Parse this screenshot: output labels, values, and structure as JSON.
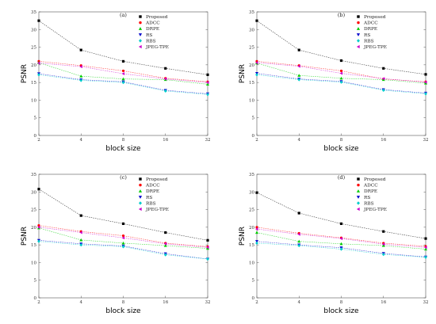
{
  "chart_data": [
    {
      "type": "line",
      "title": "(a)",
      "xlabel": "block size",
      "ylabel": "PSNR",
      "categories": [
        "2",
        "4",
        "8",
        "16",
        "32"
      ],
      "ylim": [
        0,
        35
      ],
      "yticks": [
        0,
        5,
        10,
        15,
        20,
        25,
        30,
        35
      ],
      "grid": false,
      "legend_position": "top-right",
      "series": [
        {
          "name": "Proposed",
          "values": [
            32.5,
            24.2,
            21.0,
            19.0,
            17.2
          ],
          "color": "#000000",
          "marker": "square"
        },
        {
          "name": "ADCC",
          "values": [
            21.0,
            19.8,
            18.3,
            16.2,
            15.2
          ],
          "color": "#ff0000",
          "marker": "circle"
        },
        {
          "name": "DRPE",
          "values": [
            20.6,
            16.8,
            16.0,
            15.8,
            14.5
          ],
          "color": "#00cc00",
          "marker": "triangle-up"
        },
        {
          "name": "RS",
          "values": [
            17.5,
            15.8,
            15.2,
            12.8,
            11.8
          ],
          "color": "#0000cc",
          "marker": "triangle-down"
        },
        {
          "name": "RBS",
          "values": [
            17.2,
            15.6,
            15.0,
            12.6,
            11.6
          ],
          "color": "#00cccc",
          "marker": "diamond"
        },
        {
          "name": "JPEG-TPE",
          "values": [
            20.5,
            19.5,
            17.5,
            16.0,
            15.0
          ],
          "color": "#cc00cc",
          "marker": "triangle-left"
        }
      ]
    },
    {
      "type": "line",
      "title": "(b)",
      "xlabel": "block size",
      "ylabel": "PSNR",
      "categories": [
        "2",
        "4",
        "8",
        "16",
        "32"
      ],
      "ylim": [
        0,
        35
      ],
      "yticks": [
        0,
        5,
        10,
        15,
        20,
        25,
        30,
        35
      ],
      "grid": false,
      "legend_position": "top-right",
      "series": [
        {
          "name": "Proposed",
          "values": [
            32.5,
            24.2,
            21.2,
            19.0,
            17.3
          ],
          "color": "#000000",
          "marker": "square"
        },
        {
          "name": "ADCC",
          "values": [
            21.0,
            19.8,
            18.3,
            16.0,
            15.2
          ],
          "color": "#ff0000",
          "marker": "circle"
        },
        {
          "name": "DRPE",
          "values": [
            20.5,
            17.0,
            16.2,
            15.8,
            14.8
          ],
          "color": "#00cc00",
          "marker": "triangle-up"
        },
        {
          "name": "RS",
          "values": [
            17.6,
            16.0,
            15.3,
            13.0,
            12.0
          ],
          "color": "#0000cc",
          "marker": "triangle-down"
        },
        {
          "name": "RBS",
          "values": [
            17.2,
            15.8,
            15.1,
            12.8,
            11.8
          ],
          "color": "#00cccc",
          "marker": "diamond"
        },
        {
          "name": "JPEG-TPE",
          "values": [
            20.6,
            19.6,
            17.6,
            16.1,
            15.1
          ],
          "color": "#cc00cc",
          "marker": "triangle-left"
        }
      ]
    },
    {
      "type": "line",
      "title": "(c)",
      "xlabel": "block size",
      "ylabel": "PSNR",
      "categories": [
        "2",
        "4",
        "8",
        "16",
        "32"
      ],
      "ylim": [
        0,
        35
      ],
      "yticks": [
        0,
        5,
        10,
        15,
        20,
        25,
        30,
        35
      ],
      "grid": false,
      "legend_position": "top-right",
      "series": [
        {
          "name": "Proposed",
          "values": [
            30.8,
            23.3,
            21.0,
            18.5,
            16.3
          ],
          "color": "#000000",
          "marker": "square"
        },
        {
          "name": "ADCC",
          "values": [
            20.5,
            18.8,
            17.6,
            15.5,
            14.5
          ],
          "color": "#ff0000",
          "marker": "circle"
        },
        {
          "name": "DRPE",
          "values": [
            19.8,
            16.4,
            15.5,
            14.8,
            14.0
          ],
          "color": "#00cc00",
          "marker": "triangle-up"
        },
        {
          "name": "RS",
          "values": [
            16.3,
            15.3,
            14.7,
            12.5,
            11.0
          ],
          "color": "#0000cc",
          "marker": "triangle-down"
        },
        {
          "name": "RBS",
          "values": [
            16.0,
            15.0,
            14.5,
            12.2,
            11.0
          ],
          "color": "#00cccc",
          "marker": "diamond"
        },
        {
          "name": "JPEG-TPE",
          "values": [
            20.0,
            18.5,
            17.0,
            15.3,
            14.3
          ],
          "color": "#cc00cc",
          "marker": "triangle-left"
        }
      ]
    },
    {
      "type": "line",
      "title": "(d)",
      "xlabel": "block size",
      "ylabel": "PSNR",
      "categories": [
        "2",
        "4",
        "8",
        "16",
        "32"
      ],
      "ylim": [
        0,
        35
      ],
      "yticks": [
        0,
        5,
        10,
        15,
        20,
        25,
        30,
        35
      ],
      "grid": false,
      "legend_position": "top-right",
      "series": [
        {
          "name": "Proposed",
          "values": [
            29.8,
            24.0,
            21.0,
            18.8,
            16.8
          ],
          "color": "#000000",
          "marker": "square"
        },
        {
          "name": "ADCC",
          "values": [
            20.0,
            18.3,
            17.0,
            15.5,
            14.6
          ],
          "color": "#ff0000",
          "marker": "circle"
        },
        {
          "name": "DRPE",
          "values": [
            18.5,
            16.0,
            15.3,
            14.8,
            13.8
          ],
          "color": "#00cc00",
          "marker": "triangle-up"
        },
        {
          "name": "RS",
          "values": [
            16.0,
            15.0,
            14.2,
            12.6,
            11.6
          ],
          "color": "#0000cc",
          "marker": "triangle-down"
        },
        {
          "name": "RBS",
          "values": [
            15.5,
            14.8,
            13.8,
            12.3,
            11.5
          ],
          "color": "#00cccc",
          "marker": "diamond"
        },
        {
          "name": "JPEG-TPE",
          "values": [
            19.5,
            18.0,
            16.8,
            15.2,
            14.3
          ],
          "color": "#cc00cc",
          "marker": "triangle-left"
        }
      ]
    }
  ]
}
